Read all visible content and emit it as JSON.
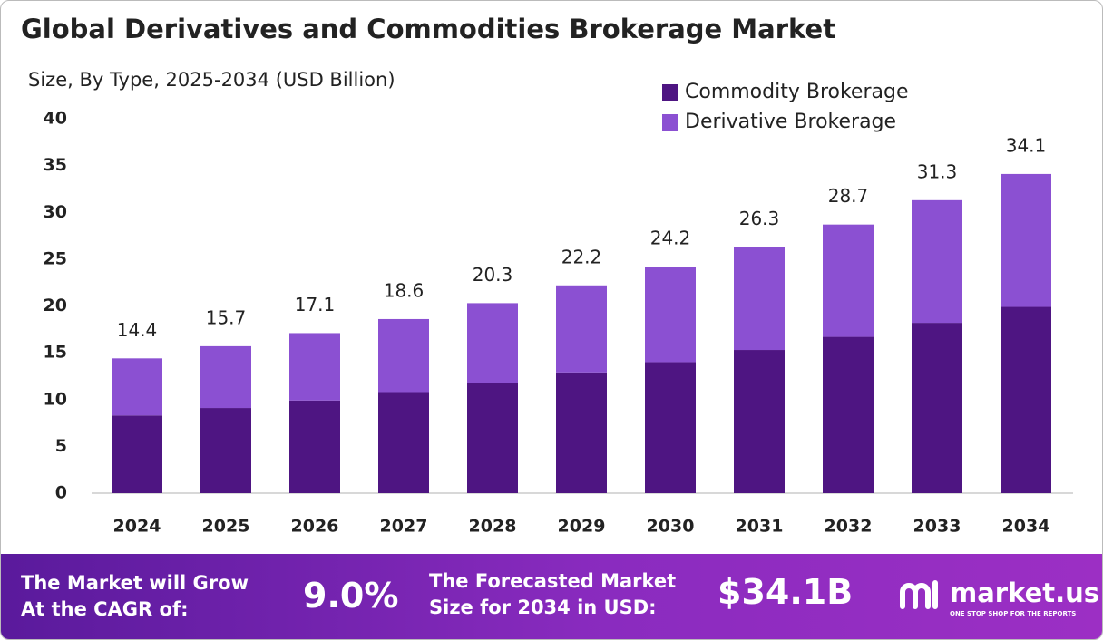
{
  "chart_data": {
    "type": "stacked_bar",
    "title": "Global Derivatives and Commodities Brokerage Market",
    "subtitle": "Size, By Type, 2025-2034 (USD Billion)",
    "categories": [
      "2024",
      "2025",
      "2026",
      "2027",
      "2028",
      "2029",
      "2030",
      "2031",
      "2032",
      "2033",
      "2034"
    ],
    "series": [
      {
        "name": "Commodity Brokerage",
        "color": "#4e1582",
        "values": [
          8.3,
          9.1,
          9.9,
          10.8,
          11.8,
          12.9,
          14.0,
          15.3,
          16.7,
          18.2,
          19.9
        ]
      },
      {
        "name": "Derivative Brokerage",
        "color": "#8b50d2",
        "values": [
          6.1,
          6.6,
          7.2,
          7.8,
          8.5,
          9.3,
          10.2,
          11.0,
          12.0,
          13.1,
          14.2
        ]
      }
    ],
    "totals": [
      14.4,
      15.7,
      17.1,
      18.6,
      20.3,
      22.2,
      24.2,
      26.3,
      28.7,
      31.3,
      34.1
    ],
    "ylim": [
      0,
      40
    ],
    "yticks": [
      0,
      5,
      10,
      15,
      20,
      25,
      30,
      35,
      40
    ],
    "legend": "top-right",
    "grid": false
  },
  "footer": {
    "cagr_label": [
      "The Market will Grow",
      "At the CAGR of:"
    ],
    "cagr": "9.0%",
    "forecast_label": [
      "The Forecasted Market",
      "Size for 2034 in USD:"
    ],
    "forecast": "$34.1B",
    "brand": "market.us",
    "tagline": "ONE STOP SHOP FOR THE REPORTS"
  }
}
